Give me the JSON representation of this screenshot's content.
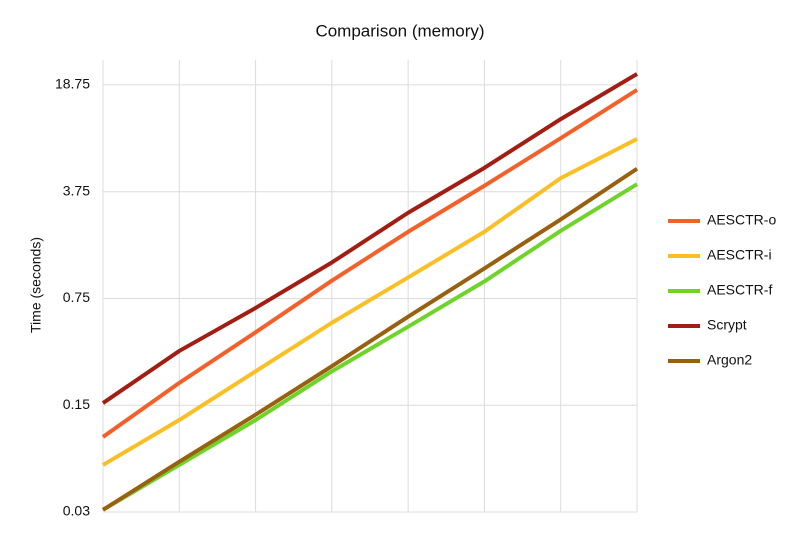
{
  "chart_data": {
    "type": "line",
    "title": "Comparison (memory)",
    "y_label": "Time (seconds)",
    "categories": [
      null,
      null,
      null,
      null,
      null,
      null,
      null,
      null
    ],
    "series": [
      {
        "name": "AESCTR-o",
        "color": "#f4602a",
        "values": [
          0.093,
          0.21,
          0.45,
          0.98,
          2.05,
          4.1,
          8.4,
          17.4
        ]
      },
      {
        "name": "AESCTR-i",
        "color": "#fbbf26",
        "values": [
          0.061,
          0.12,
          0.25,
          0.52,
          1.03,
          2.05,
          4.6,
          8.3
        ]
      },
      {
        "name": "AESCTR-f",
        "color": "#6fd42a",
        "values": [
          0.031,
          0.061,
          0.12,
          0.25,
          0.49,
          0.97,
          2.08,
          4.2
        ]
      },
      {
        "name": "Scrypt",
        "color": "#a21d12",
        "values": [
          0.155,
          0.34,
          0.65,
          1.29,
          2.73,
          5.37,
          11.2,
          22.1
        ]
      },
      {
        "name": "Argon2",
        "color": "#98600f",
        "values": [
          0.031,
          0.064,
          0.13,
          0.27,
          0.57,
          1.18,
          2.47,
          5.3
        ]
      }
    ],
    "ylim": [
      0.03,
      27.3
    ],
    "yticks": [
      0.03,
      0.15,
      0.75,
      3.75,
      18.75
    ],
    "y_scale": "log",
    "grid": true,
    "legend": "right"
  }
}
